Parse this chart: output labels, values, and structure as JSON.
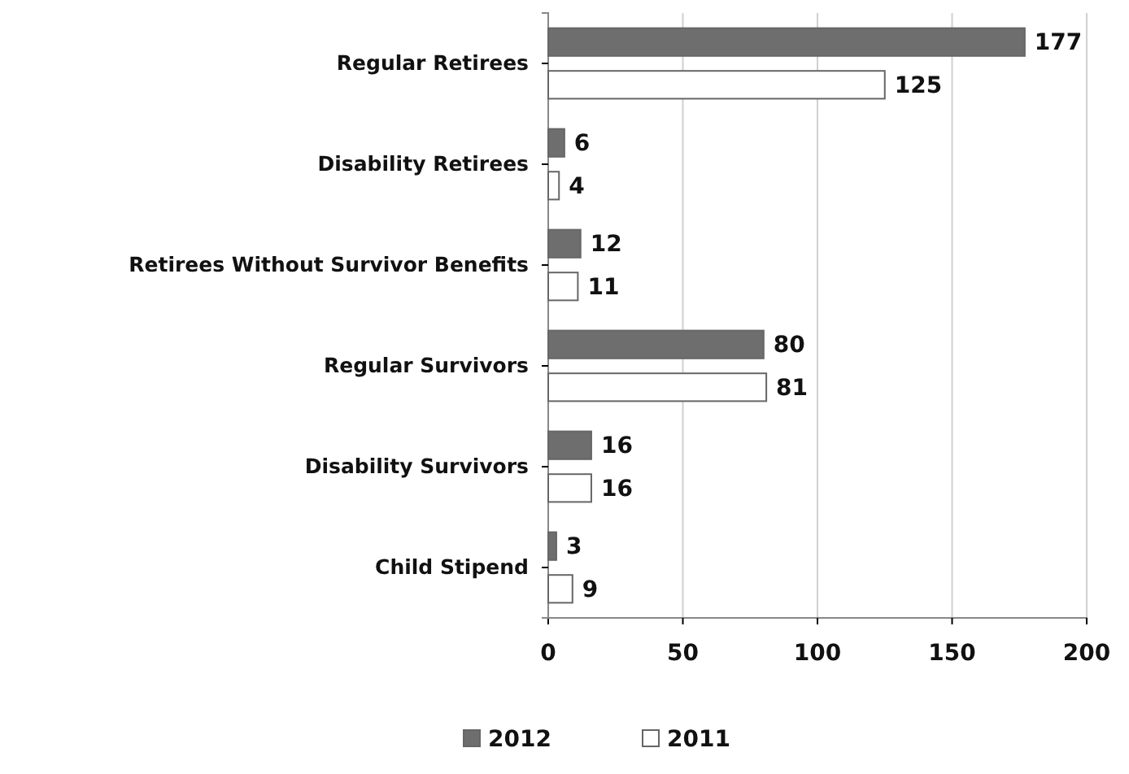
{
  "chart_data": {
    "type": "bar",
    "orientation": "horizontal",
    "categories": [
      "Regular Retirees",
      "Disability Retirees",
      "Retirees Without Survivor Benefits",
      "Regular Survivors",
      "Disability Survivors",
      "Child Stipend"
    ],
    "series": [
      {
        "name": "2012",
        "color": "#6e6e6e",
        "values": [
          177,
          6,
          12,
          80,
          16,
          3
        ]
      },
      {
        "name": "2011",
        "color": "#ffffff",
        "values": [
          125,
          4,
          11,
          81,
          16,
          9
        ]
      }
    ],
    "xlim": [
      0,
      200
    ],
    "xticks": [
      0,
      50,
      100,
      150,
      200
    ],
    "grid": "x",
    "data_labels": true,
    "legend": "bottom"
  }
}
